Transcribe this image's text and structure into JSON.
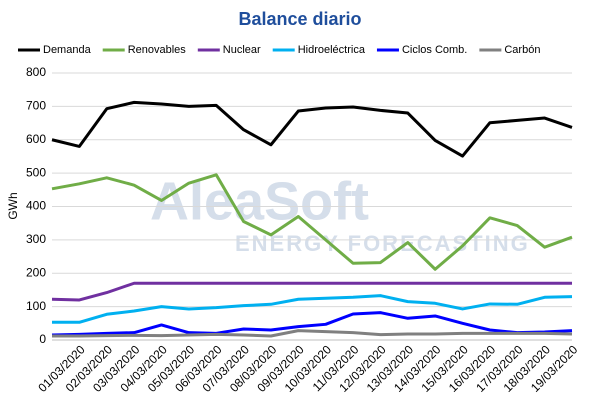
{
  "chart_data": {
    "type": "line",
    "title": "Balance diario",
    "y_label": "GWh",
    "watermark": [
      "AleaSoft",
      "ENERGY FORECASTING"
    ],
    "categories": [
      null,
      "01/03/2020",
      "02/03/2020",
      "03/03/2020",
      "04/03/2020",
      "05/03/2020",
      "06/03/2020",
      "07/03/2020",
      "08/03/2020",
      "09/03/2020",
      "10/03/2020",
      "11/03/2020",
      "12/03/2020",
      "13/03/2020",
      "14/03/2020",
      "15/03/2020",
      "16/03/2020",
      "17/03/2020",
      "18/03/2020",
      "19/03/2020"
    ],
    "series": [
      {
        "name": "Demanda",
        "color": "#000000",
        "values": [
          600,
          580,
          693,
          712,
          707,
          700,
          703,
          630,
          585,
          686,
          695,
          698,
          688,
          680,
          598,
          551,
          651,
          658,
          665,
          637
        ]
      },
      {
        "name": "Renovables",
        "color": "#70ad47",
        "values": [
          453,
          468,
          486,
          464,
          418,
          470,
          495,
          355,
          315,
          370,
          300,
          230,
          232,
          292,
          212,
          282,
          366,
          343,
          278,
          308
        ]
      },
      {
        "name": "Nuclear",
        "color": "#7030a0",
        "values": [
          122,
          120,
          142,
          170,
          170,
          170,
          170,
          170,
          170,
          170,
          170,
          170,
          170,
          170,
          170,
          170,
          170,
          170,
          170,
          170
        ]
      },
      {
        "name": "Hidroeléctrica",
        "color": "#00b0f0",
        "values": [
          53,
          53,
          77,
          87,
          100,
          93,
          97,
          103,
          107,
          122,
          125,
          128,
          133,
          115,
          110,
          93,
          108,
          107,
          128,
          130
        ]
      },
      {
        "name": "Ciclos Comb.",
        "color": "#0000ff",
        "values": [
          15,
          17,
          20,
          22,
          45,
          22,
          20,
          33,
          30,
          40,
          47,
          78,
          82,
          65,
          72,
          50,
          30,
          22,
          24,
          28
        ]
      },
      {
        "name": "Carbón",
        "color": "#808080",
        "values": [
          12,
          12,
          13,
          14,
          13,
          15,
          17,
          15,
          12,
          28,
          25,
          22,
          16,
          18,
          18,
          20,
          20,
          20,
          20,
          18
        ]
      }
    ],
    "ylim": [
      0,
      800
    ],
    "yticks": [
      0,
      100,
      200,
      300,
      400,
      500,
      600,
      700,
      800
    ],
    "grid": true,
    "legend": "top"
  }
}
